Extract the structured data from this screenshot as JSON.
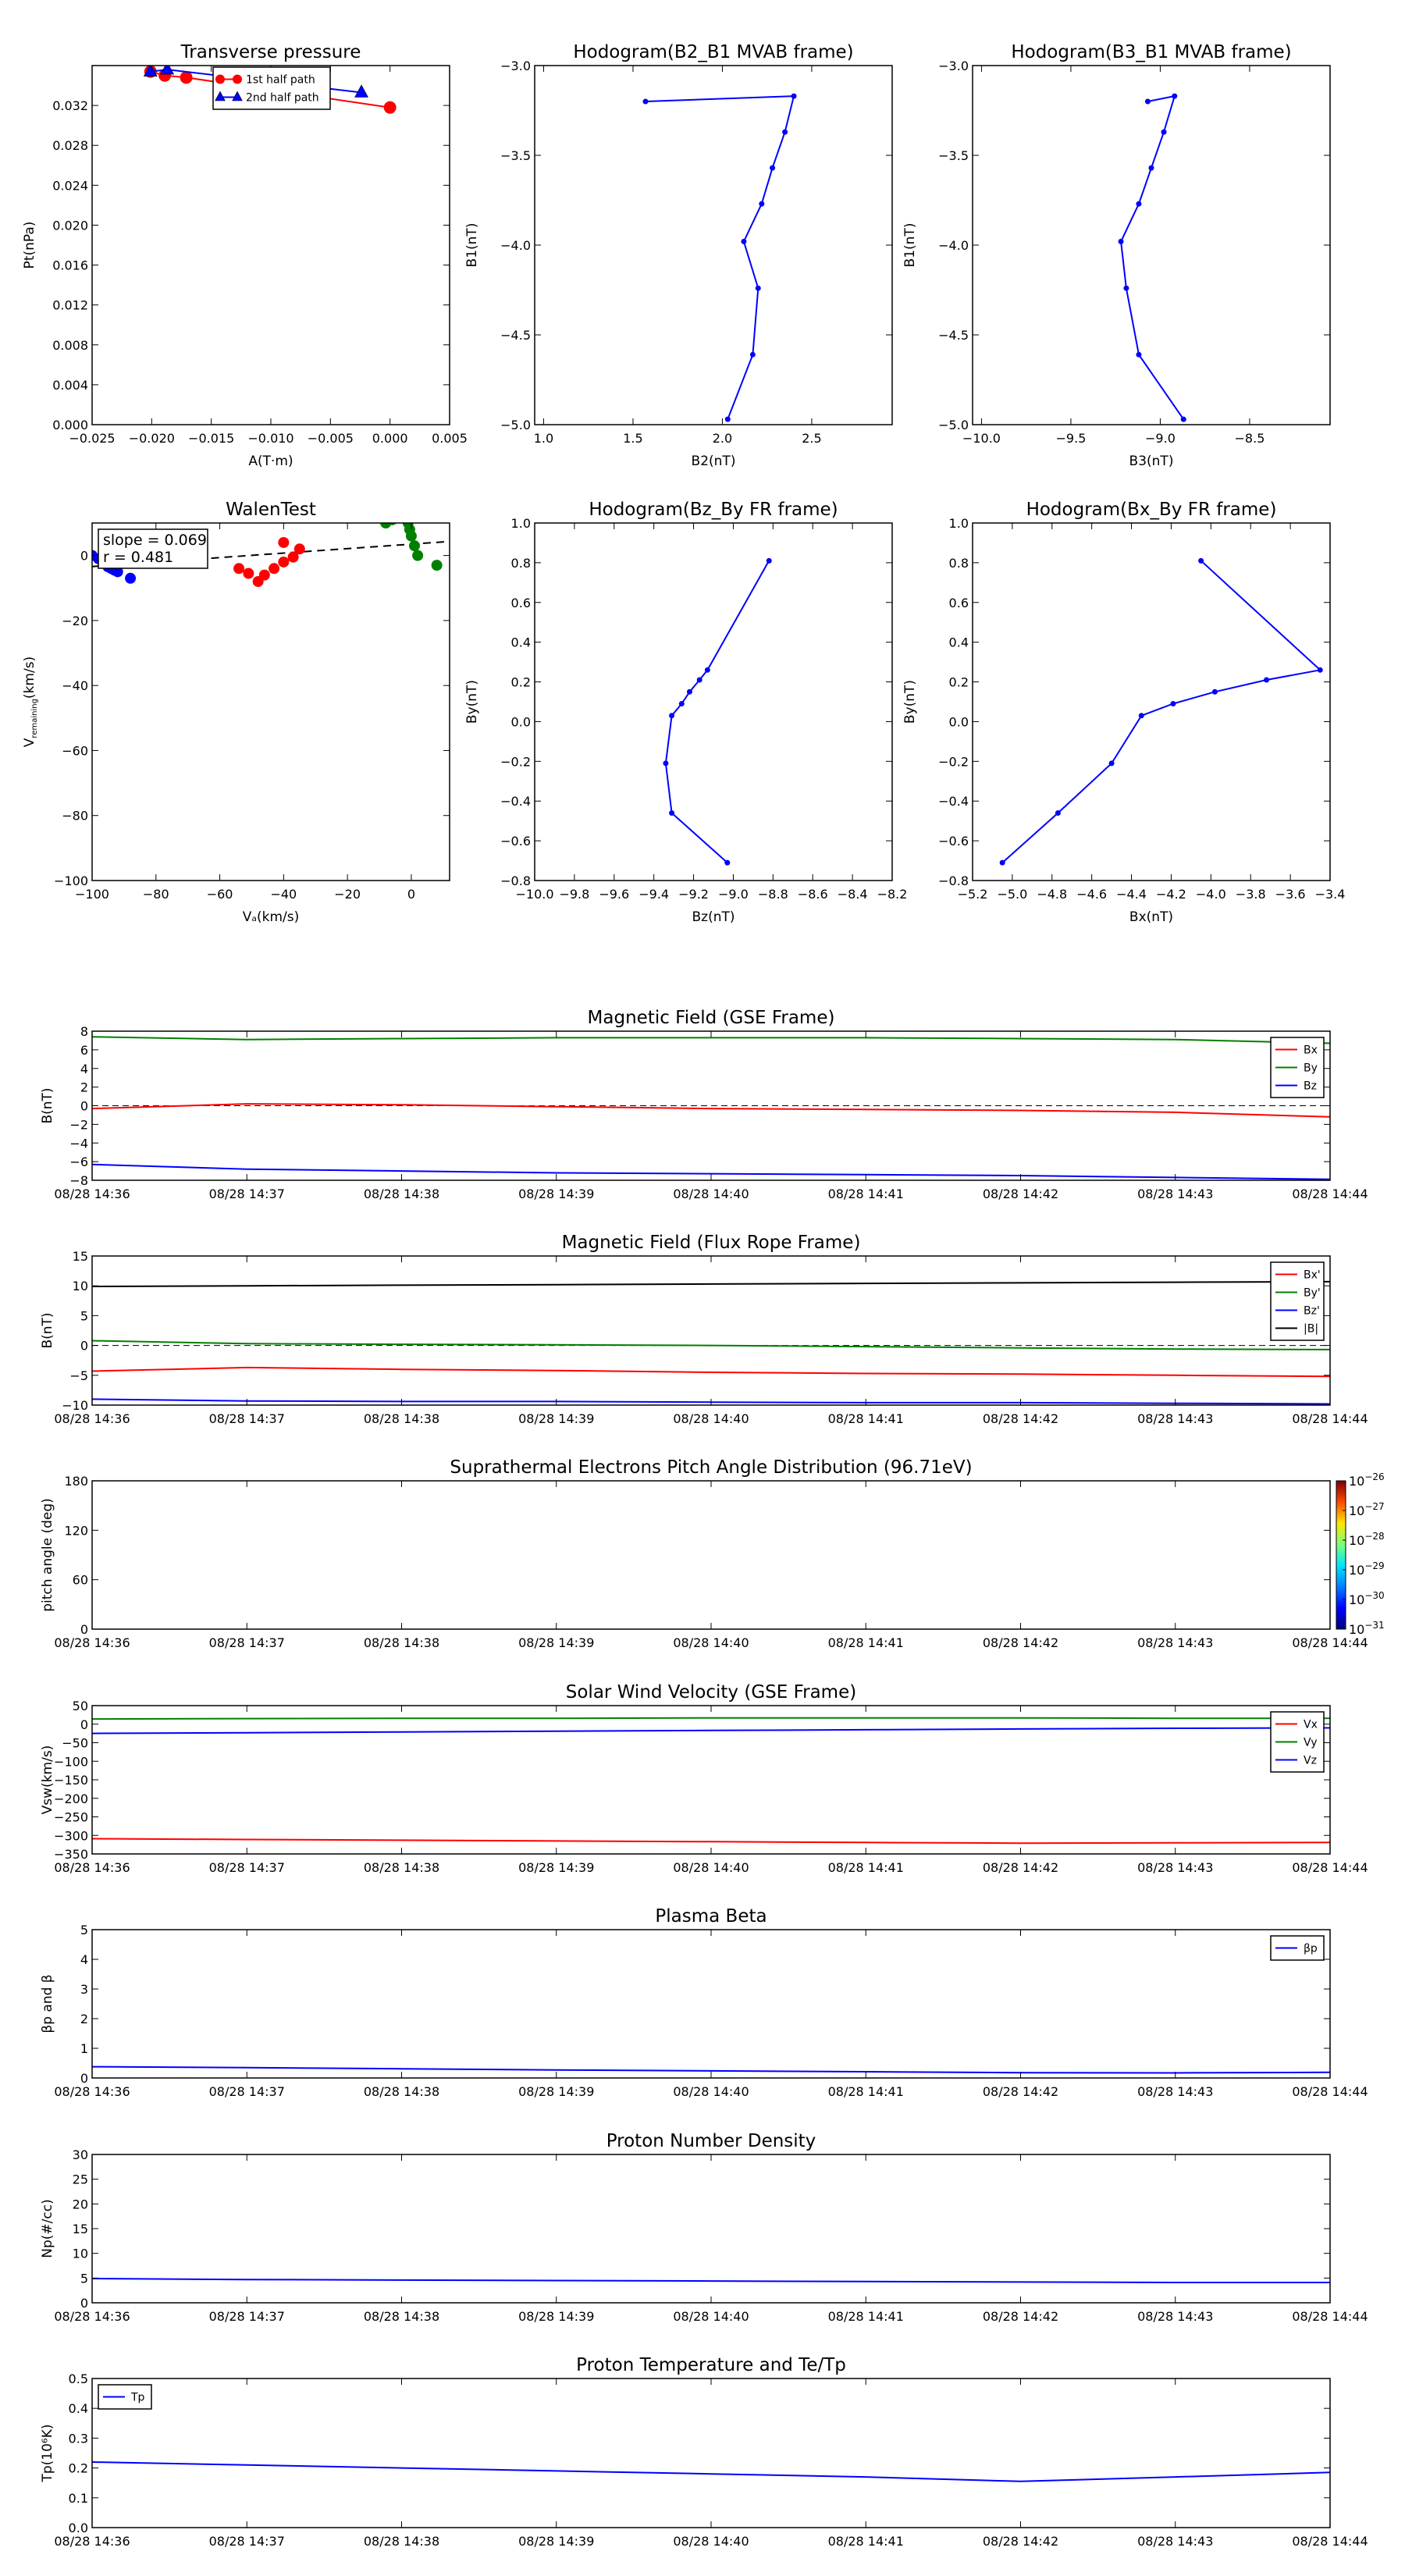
{
  "page": {
    "time_label_date": "08/28"
  },
  "chart_data": [
    {
      "id": "transverse-pressure",
      "type": "scatter",
      "title": "Transverse pressure",
      "xlabel": "A(T·m)",
      "ylabel": "Pt(nPa)",
      "xlim": [
        -0.025,
        0.005
      ],
      "ylim": [
        0,
        0.036
      ],
      "xticks": [
        -0.025,
        -0.02,
        -0.015,
        -0.01,
        -0.005,
        0.0,
        0.005
      ],
      "xtick_labels": [
        "−0.025",
        "−0.020",
        "−0.015",
        "−0.010",
        "−0.005",
        "0.000",
        "0.005"
      ],
      "yticks": [
        0,
        0.004,
        0.008,
        0.012,
        0.016,
        0.02,
        0.024,
        0.028,
        0.032
      ],
      "ytick_labels": [
        "0.000",
        "0.004",
        "0.008",
        "0.012",
        "0.016",
        "0.020",
        "0.024",
        "0.028",
        "0.032"
      ],
      "legend_position": "top-center",
      "series": [
        {
          "name": "1st half path",
          "color": "#ff0000",
          "marker": "circle",
          "x": [
            -0.0201,
            -0.0189,
            -0.0171,
            0.0
          ],
          "y": [
            0.0354,
            0.035,
            0.0348,
            0.0318
          ]
        },
        {
          "name": "2nd half path",
          "color": "#0000ff",
          "marker": "triangle",
          "x": [
            -0.0201,
            -0.0187,
            -0.0024
          ],
          "y": [
            0.0354,
            0.0356,
            0.0333
          ]
        }
      ]
    },
    {
      "id": "hodogram-b2b1",
      "type": "line",
      "title": "Hodogram(B2_B1 MVAB frame)",
      "xlabel": "B2(nT)",
      "ylabel": "B1(nT)",
      "xlim": [
        0.95,
        2.95
      ],
      "ylim": [
        -5.0,
        -3.0
      ],
      "xticks": [
        1.0,
        1.5,
        2.0,
        2.5
      ],
      "xtick_labels": [
        "1.0",
        "1.5",
        "2.0",
        "2.5"
      ],
      "yticks": [
        -5.0,
        -4.5,
        -4.0,
        -3.5,
        -3.0
      ],
      "ytick_labels": [
        "−5.0",
        "−4.5",
        "−4.0",
        "−3.5",
        "−3.0"
      ],
      "series": [
        {
          "color": "#0000ff",
          "x": [
            1.57,
            2.4,
            2.35,
            2.28,
            2.22,
            2.12,
            2.2,
            2.17,
            2.03
          ],
          "y": [
            -3.2,
            -3.17,
            -3.37,
            -3.57,
            -3.77,
            -3.98,
            -4.24,
            -4.61,
            -4.97
          ]
        }
      ]
    },
    {
      "id": "hodogram-b3b1",
      "type": "line",
      "title": "Hodogram(B3_B1 MVAB frame)",
      "xlabel": "B3(nT)",
      "ylabel": "B1(nT)",
      "xlim": [
        -10.05,
        -8.05
      ],
      "ylim": [
        -5.0,
        -3.0
      ],
      "xticks": [
        -10.0,
        -9.5,
        -9.0,
        -8.5
      ],
      "xtick_labels": [
        "−10.0",
        "−9.5",
        "−9.0",
        "−8.5"
      ],
      "yticks": [
        -5.0,
        -4.5,
        -4.0,
        -3.5,
        -3.0
      ],
      "ytick_labels": [
        "−5.0",
        "−4.5",
        "−4.0",
        "−3.5",
        "−3.0"
      ],
      "series": [
        {
          "color": "#0000ff",
          "x": [
            -9.07,
            -8.92,
            -8.98,
            -9.05,
            -9.12,
            -9.22,
            -9.19,
            -9.12,
            -8.87
          ],
          "y": [
            -3.2,
            -3.17,
            -3.37,
            -3.57,
            -3.77,
            -3.98,
            -4.24,
            -4.61,
            -4.97
          ]
        }
      ]
    },
    {
      "id": "walen-test",
      "type": "scatter",
      "title": "WalenTest",
      "xlabel": "Vₐ(km/s)",
      "ylabel": "V",
      "ylabel_sub": "remaining",
      "ylabel_unit": "(km/s)",
      "xlim": [
        -100,
        12
      ],
      "ylim": [
        -100,
        10
      ],
      "xticks": [
        -100,
        -80,
        -60,
        -40,
        -20,
        0
      ],
      "xtick_labels": [
        "−100",
        "−80",
        "−60",
        "−40",
        "−20",
        "0"
      ],
      "yticks": [
        -100,
        -80,
        -60,
        -40,
        -20,
        0
      ],
      "ytick_labels": [
        "−100",
        "−80",
        "−60",
        "−40",
        "−20",
        "0"
      ],
      "annotation": {
        "slope": "slope = 0.069",
        "r": "r = 0.481"
      },
      "fit_line": {
        "slope": 0.069,
        "intercept": 3.5
      },
      "series": [
        {
          "color": "#0000ff",
          "x": [
            -100,
            -98,
            -96,
            -95,
            -94,
            -93,
            -92,
            -88
          ],
          "y": [
            0,
            -1,
            -2.5,
            -3.5,
            -4,
            -4.5,
            -5,
            -7
          ]
        },
        {
          "color": "#ff0000",
          "x": [
            -54,
            -51,
            -48,
            -46,
            -43,
            -40,
            -37,
            -35,
            -40
          ],
          "y": [
            -4,
            -5.5,
            -8,
            -6,
            -4,
            -2,
            -0.5,
            2,
            4
          ]
        },
        {
          "color": "#008000",
          "x": [
            -8,
            -6,
            -5,
            -4,
            -3,
            -2,
            -1,
            -0.5,
            0,
            1,
            2,
            8
          ],
          "y": [
            10,
            11,
            11.5,
            12,
            12,
            11.5,
            10,
            8,
            6,
            3,
            0,
            -3
          ]
        }
      ]
    },
    {
      "id": "hodogram-bzby",
      "type": "line",
      "title": "Hodogram(Bz_By FR frame)",
      "xlabel": "Bz(nT)",
      "ylabel": "By(nT)",
      "xlim": [
        -10.0,
        -8.2
      ],
      "ylim": [
        -0.8,
        1.0
      ],
      "xticks": [
        -10.0,
        -9.8,
        -9.6,
        -9.4,
        -9.2,
        -9.0,
        -8.8,
        -8.6,
        -8.4,
        -8.2
      ],
      "xtick_labels": [
        "−10.0",
        "−9.8",
        "−9.6",
        "−9.4",
        "−9.2",
        "−9.0",
        "−8.8",
        "−8.6",
        "−8.4",
        "−8.2"
      ],
      "yticks": [
        -0.8,
        -0.6,
        -0.4,
        -0.2,
        0.0,
        0.2,
        0.4,
        0.6,
        0.8,
        1.0
      ],
      "ytick_labels": [
        "−0.8",
        "−0.6",
        "−0.4",
        "−0.2",
        "0.0",
        "0.2",
        "0.4",
        "0.6",
        "0.8",
        "1.0"
      ],
      "series": [
        {
          "color": "#0000ff",
          "x": [
            -8.82,
            -9.13,
            -9.17,
            -9.22,
            -9.26,
            -9.31,
            -9.34,
            -9.31,
            -9.03
          ],
          "y": [
            0.81,
            0.26,
            0.21,
            0.15,
            0.09,
            0.03,
            -0.21,
            -0.46,
            -0.71
          ]
        }
      ]
    },
    {
      "id": "hodogram-bxby",
      "type": "line",
      "title": "Hodogram(Bx_By FR frame)",
      "xlabel": "Bx(nT)",
      "ylabel": "By(nT)",
      "xlim": [
        -5.2,
        -3.4
      ],
      "ylim": [
        -0.8,
        1.0
      ],
      "xticks": [
        -5.2,
        -5.0,
        -4.8,
        -4.6,
        -4.4,
        -4.2,
        -4.0,
        -3.8,
        -3.6,
        -3.4
      ],
      "xtick_labels": [
        "−5.2",
        "−5.0",
        "−4.8",
        "−4.6",
        "−4.4",
        "−4.2",
        "−4.0",
        "−3.8",
        "−3.6",
        "−3.4"
      ],
      "yticks": [
        -0.8,
        -0.6,
        -0.4,
        -0.2,
        0.0,
        0.2,
        0.4,
        0.6,
        0.8,
        1.0
      ],
      "ytick_labels": [
        "−0.8",
        "−0.6",
        "−0.4",
        "−0.2",
        "0.0",
        "0.2",
        "0.4",
        "0.6",
        "0.8",
        "1.0"
      ],
      "series": [
        {
          "color": "#0000ff",
          "x": [
            -4.05,
            -3.45,
            -3.72,
            -3.98,
            -4.19,
            -4.35,
            -4.5,
            -4.77,
            -5.05
          ],
          "y": [
            0.81,
            0.26,
            0.21,
            0.15,
            0.09,
            0.03,
            -0.21,
            -0.46,
            -0.71
          ]
        }
      ]
    },
    {
      "id": "magnetic-field-gse",
      "type": "line",
      "title": "Magnetic Field (GSE Frame)",
      "ylabel": "B(nT)",
      "ylim": [
        -8,
        8
      ],
      "yticks": [
        -8,
        -6,
        -4,
        -2,
        0,
        2,
        4,
        6,
        8
      ],
      "ytick_labels": [
        "−8",
        "−6",
        "−4",
        "−2",
        "0",
        "2",
        "4",
        "6",
        "8"
      ],
      "x": [
        "08/28 14:36",
        "08/28 14:37",
        "08/28 14:38",
        "08/28 14:39",
        "08/28 14:40",
        "08/28 14:41",
        "08/28 14:42",
        "08/28 14:43",
        "08/28 14:44"
      ],
      "zero_line": true,
      "legend_position": "top-right",
      "series": [
        {
          "name": "Bx",
          "color": "#ff0000",
          "values": [
            -0.3,
            0.2,
            0.1,
            -0.1,
            -0.3,
            -0.4,
            -0.5,
            -0.7,
            -1.2
          ]
        },
        {
          "name": "By",
          "color": "#008000",
          "values": [
            7.4,
            7.1,
            7.2,
            7.3,
            7.3,
            7.3,
            7.2,
            7.1,
            6.7
          ]
        },
        {
          "name": "Bz",
          "color": "#0000ff",
          "values": [
            -6.3,
            -6.8,
            -7.0,
            -7.2,
            -7.3,
            -7.4,
            -7.5,
            -7.7,
            -7.9
          ]
        }
      ]
    },
    {
      "id": "magnetic-field-fr",
      "type": "line",
      "title": "Magnetic Field (Flux Rope Frame)",
      "ylabel": "B(nT)",
      "ylim": [
        -10,
        15
      ],
      "yticks": [
        -10,
        -5,
        0,
        5,
        10,
        15
      ],
      "ytick_labels": [
        "−10",
        "−5",
        "0",
        "5",
        "10",
        "15"
      ],
      "x": [
        "08/28 14:36",
        "08/28 14:37",
        "08/28 14:38",
        "08/28 14:39",
        "08/28 14:40",
        "08/28 14:41",
        "08/28 14:42",
        "08/28 14:43",
        "08/28 14:44"
      ],
      "zero_line": true,
      "legend_position": "top-right",
      "series": [
        {
          "name": "Bx'",
          "color": "#ff0000",
          "values": [
            -4.3,
            -3.7,
            -4.0,
            -4.2,
            -4.5,
            -4.7,
            -4.8,
            -5.0,
            -5.2
          ]
        },
        {
          "name": "By'",
          "color": "#008000",
          "values": [
            0.8,
            0.3,
            0.2,
            0.1,
            0.0,
            -0.2,
            -0.4,
            -0.6,
            -0.7
          ]
        },
        {
          "name": "Bz'",
          "color": "#0000ff",
          "values": [
            -9.0,
            -9.3,
            -9.4,
            -9.4,
            -9.5,
            -9.6,
            -9.6,
            -9.7,
            -9.8
          ]
        },
        {
          "name": "|B|",
          "color": "#000000",
          "values": [
            9.9,
            10.0,
            10.1,
            10.2,
            10.3,
            10.4,
            10.5,
            10.6,
            10.7
          ]
        }
      ]
    },
    {
      "id": "electron-pad",
      "type": "heatmap",
      "title": "Suprathermal Electrons Pitch Angle Distribution (96.71eV)",
      "ylabel": "pitch angle (deg)",
      "ylim": [
        0,
        180
      ],
      "yticks": [
        0,
        60,
        120,
        180
      ],
      "ytick_labels": [
        "0",
        "60",
        "120",
        "180"
      ],
      "x": [
        "08/28 14:36",
        "08/28 14:37",
        "08/28 14:38",
        "08/28 14:39",
        "08/28 14:40",
        "08/28 14:41",
        "08/28 14:42",
        "08/28 14:43",
        "08/28 14:44"
      ],
      "colorbar": {
        "base": "10",
        "exponents": [
          "−26",
          "−27",
          "−28",
          "−29",
          "−30",
          "−31"
        ],
        "colors": [
          "#00007f",
          "#0000ff",
          "#0080ff",
          "#00e5ff",
          "#7dff7a",
          "#ffe600",
          "#ff4800",
          "#7f0000"
        ]
      }
    },
    {
      "id": "solar-wind-velocity",
      "type": "line",
      "title": "Solar Wind Velocity (GSE Frame)",
      "ylabel": "Vsw(km/s)",
      "ylim": [
        -350,
        50
      ],
      "yticks": [
        -350,
        -300,
        -250,
        -200,
        -150,
        -100,
        -50,
        0,
        50
      ],
      "ytick_labels": [
        "−350",
        "−300",
        "−250",
        "−200",
        "−150",
        "−100",
        "−50",
        "0",
        "50"
      ],
      "x": [
        "08/28 14:36",
        "08/28 14:37",
        "08/28 14:38",
        "08/28 14:39",
        "08/28 14:40",
        "08/28 14:41",
        "08/28 14:42",
        "08/28 14:43",
        "08/28 14:44"
      ],
      "legend_position": "top-right",
      "series": [
        {
          "name": "Vx",
          "color": "#ff0000",
          "values": [
            -309,
            -311,
            -313,
            -315,
            -317,
            -319,
            -321,
            -320,
            -319
          ]
        },
        {
          "name": "Vy",
          "color": "#008000",
          "values": [
            14,
            15,
            16,
            16,
            17,
            17,
            17,
            16,
            16
          ]
        },
        {
          "name": "Vz",
          "color": "#0000ff",
          "values": [
            -25,
            -23,
            -21,
            -19,
            -17,
            -15,
            -13,
            -11,
            -10
          ]
        }
      ]
    },
    {
      "id": "plasma-beta",
      "type": "line",
      "title": "Plasma Beta",
      "ylabel": "βp and β",
      "ylim": [
        0,
        5
      ],
      "yticks": [
        0,
        1,
        2,
        3,
        4,
        5
      ],
      "ytick_labels": [
        "0",
        "1",
        "2",
        "3",
        "4",
        "5"
      ],
      "x": [
        "08/28 14:36",
        "08/28 14:37",
        "08/28 14:38",
        "08/28 14:39",
        "08/28 14:40",
        "08/28 14:41",
        "08/28 14:42",
        "08/28 14:43",
        "08/28 14:44"
      ],
      "legend_position": "top-right",
      "series": [
        {
          "name": "βp",
          "color": "#0000ff",
          "values": [
            0.38,
            0.35,
            0.31,
            0.27,
            0.24,
            0.21,
            0.18,
            0.17,
            0.19
          ]
        }
      ]
    },
    {
      "id": "proton-density",
      "type": "line",
      "title": "Proton Number Density",
      "ylabel": "Np(#/cc)",
      "ylim": [
        0,
        30
      ],
      "yticks": [
        0,
        5,
        10,
        15,
        20,
        25,
        30
      ],
      "ytick_labels": [
        "0",
        "5",
        "10",
        "15",
        "20",
        "25",
        "30"
      ],
      "x": [
        "08/28 14:36",
        "08/28 14:37",
        "08/28 14:38",
        "08/28 14:39",
        "08/28 14:40",
        "08/28 14:41",
        "08/28 14:42",
        "08/28 14:43",
        "08/28 14:44"
      ],
      "series": [
        {
          "color": "#0000ff",
          "values": [
            4.9,
            4.7,
            4.6,
            4.5,
            4.4,
            4.3,
            4.2,
            4.1,
            4.1
          ]
        }
      ]
    },
    {
      "id": "proton-temperature",
      "type": "line",
      "title": "Proton Temperature and Te/Tp",
      "ylabel": "Tp(10⁶K)",
      "ylim": [
        0,
        0.5
      ],
      "yticks": [
        0,
        0.1,
        0.2,
        0.3,
        0.4,
        0.5
      ],
      "ytick_labels": [
        "0.0",
        "0.1",
        "0.2",
        "0.3",
        "0.4",
        "0.5"
      ],
      "x": [
        "08/28 14:36",
        "08/28 14:37",
        "08/28 14:38",
        "08/28 14:39",
        "08/28 14:40",
        "08/28 14:41",
        "08/28 14:42",
        "08/28 14:43",
        "08/28 14:44"
      ],
      "legend_position": "top-left",
      "series": [
        {
          "name": "Tp",
          "color": "#0000ff",
          "values": [
            0.22,
            0.21,
            0.2,
            0.19,
            0.18,
            0.17,
            0.155,
            0.17,
            0.185
          ]
        }
      ]
    }
  ]
}
